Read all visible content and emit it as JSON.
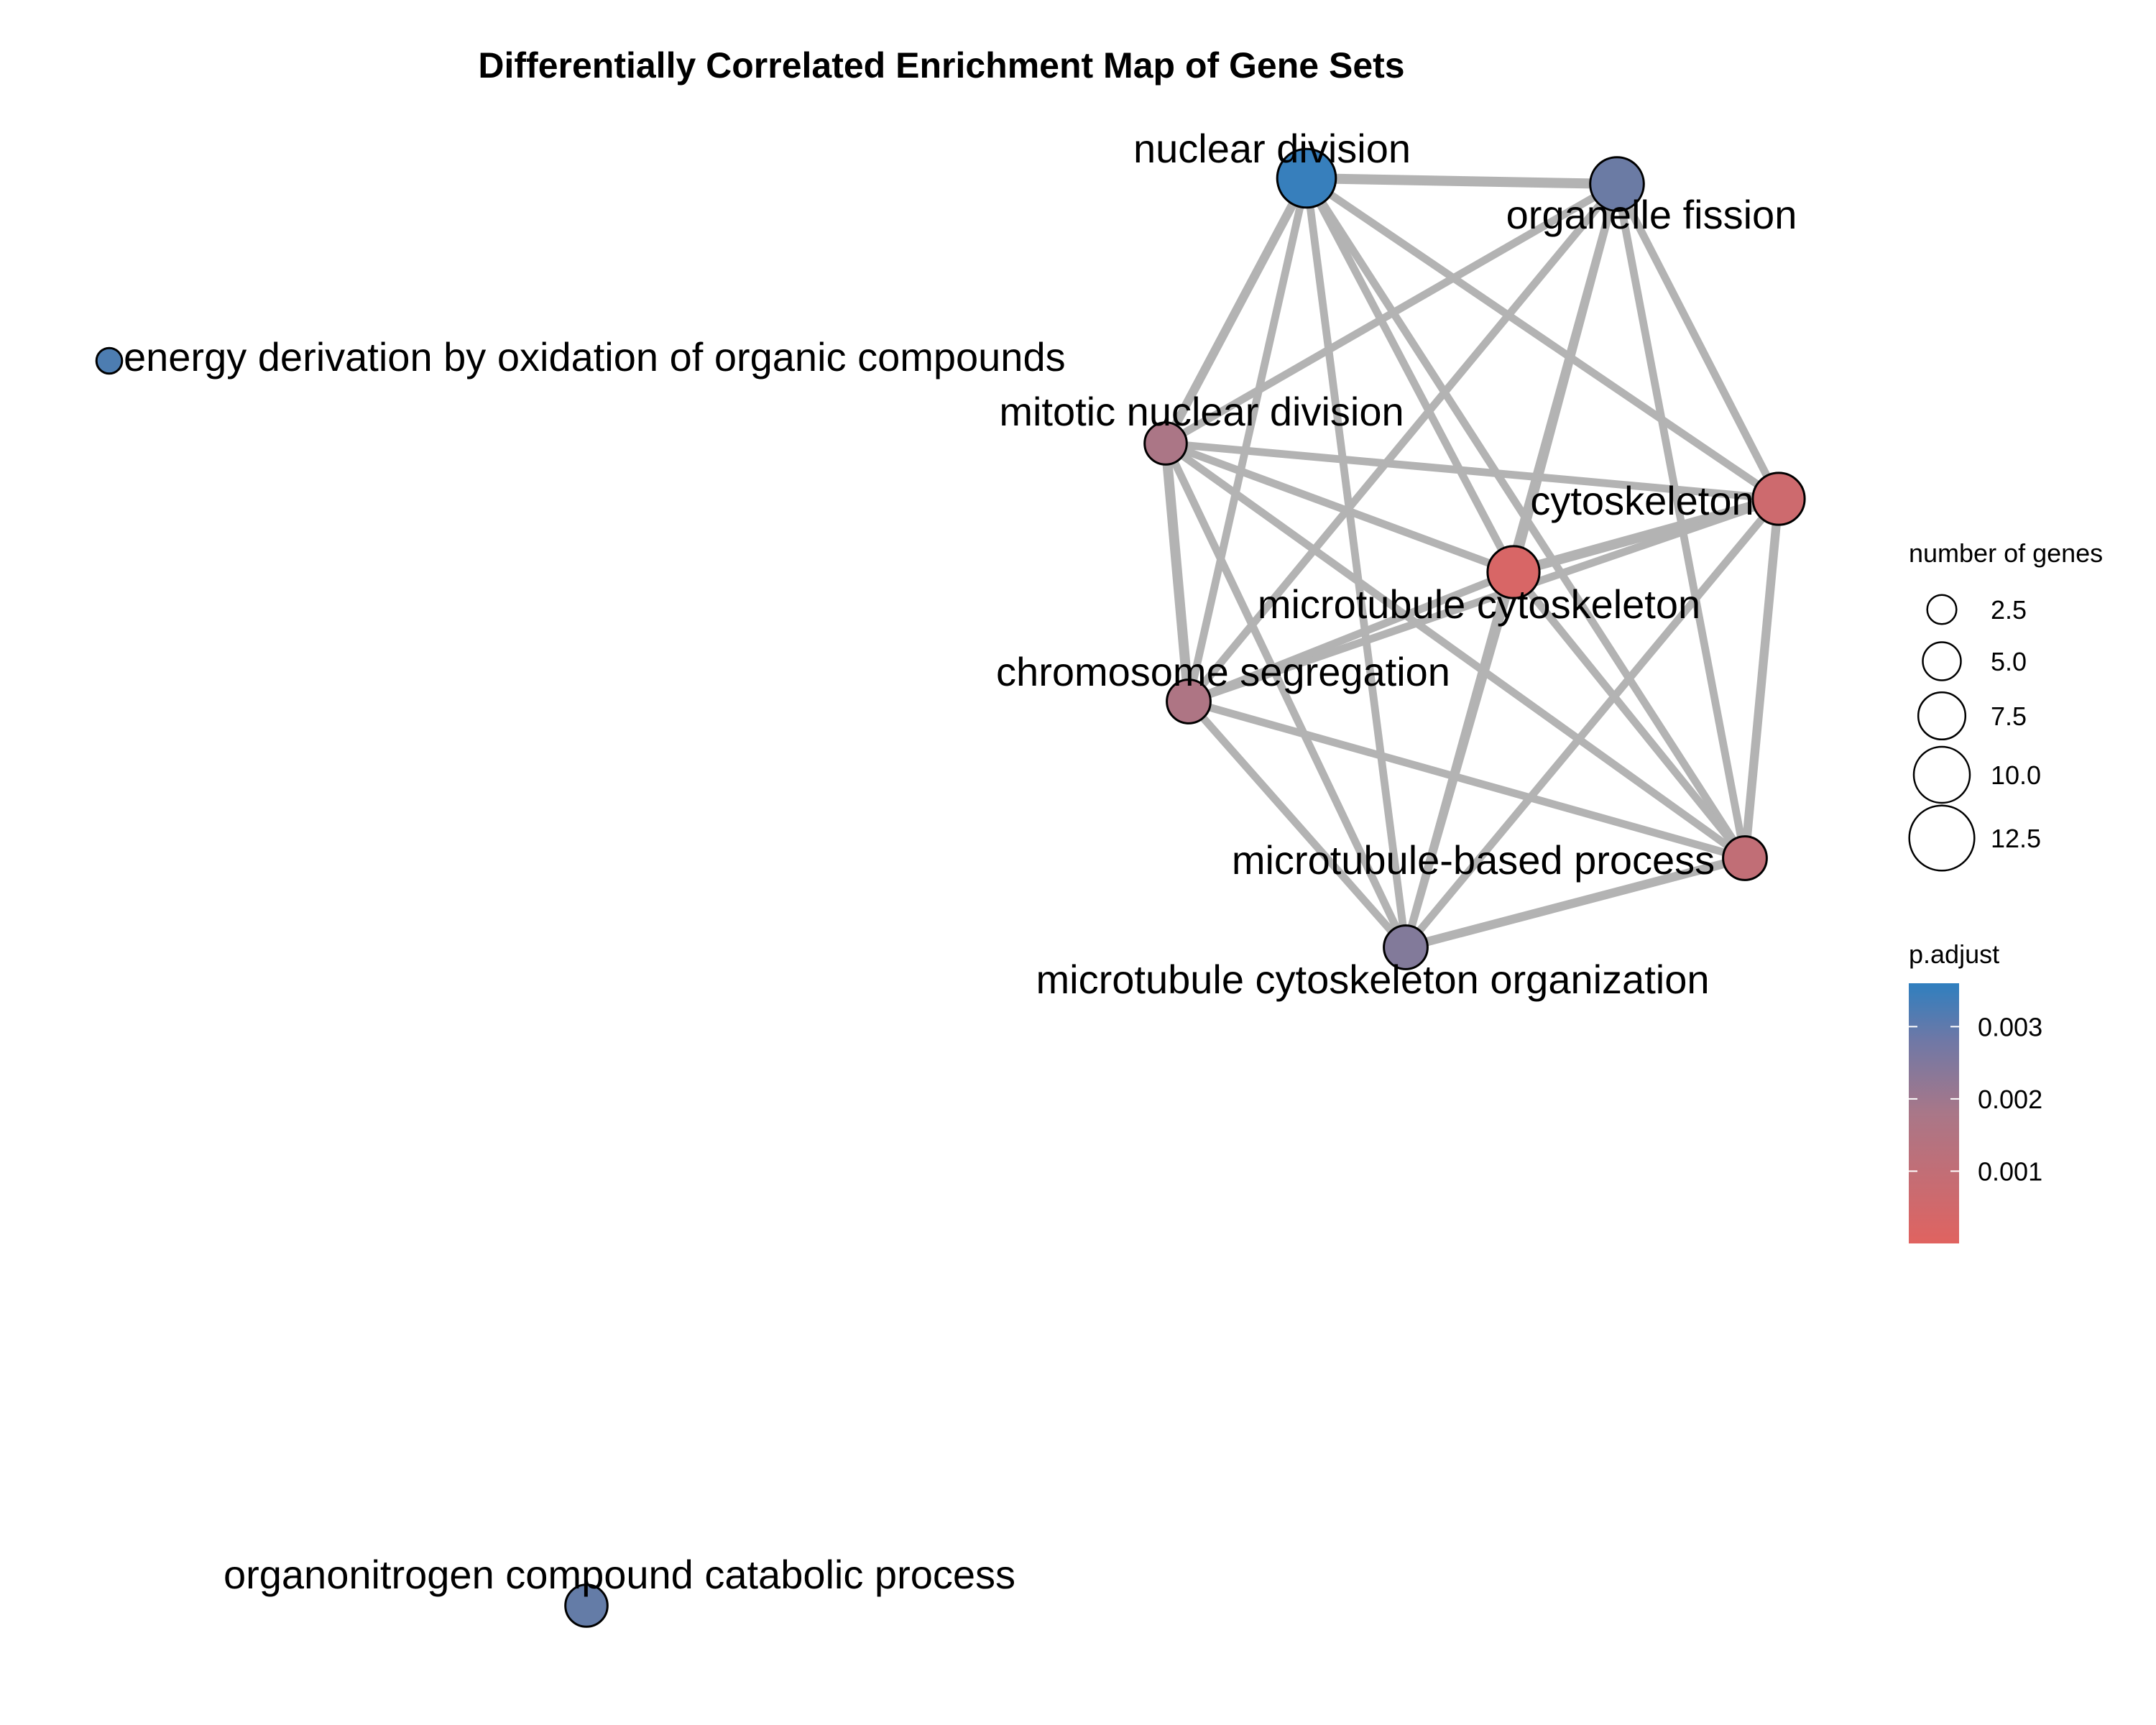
{
  "title": "Differentially Correlated Enrichment Map of Gene Sets",
  "colors": {
    "low_p": "#e06360",
    "mid_p": "#a97788",
    "high_p": "#2f7fbf",
    "edge": "#b3b3b3"
  },
  "nodes": [
    {
      "id": "nuclear-division",
      "label": "nuclear division",
      "p_adjust": 0.0035,
      "size": 12.5
    },
    {
      "id": "organelle-fission",
      "label": "organelle fission",
      "p_adjust": 0.0028,
      "size": 11.0
    },
    {
      "id": "energy-derivation",
      "label": "energy derivation by oxidation of organic compounds",
      "p_adjust": 0.0032,
      "size": 2.5
    },
    {
      "id": "mitotic-nuclear-division",
      "label": "mitotic nuclear division",
      "p_adjust": 0.0019,
      "size": 7.5
    },
    {
      "id": "cytoskeleton",
      "label": "cytoskeleton",
      "p_adjust": 0.0007,
      "size": 10.5
    },
    {
      "id": "microtubule-cytoskeleton",
      "label": "microtubule cytoskeleton",
      "p_adjust": 0.0003,
      "size": 10.5
    },
    {
      "id": "chromosome-segregation",
      "label": "chromosome segregation",
      "p_adjust": 0.0018,
      "size": 8.0
    },
    {
      "id": "microtubule-based-process",
      "label": "microtubule-based process",
      "p_adjust": 0.0011,
      "size": 8.0
    },
    {
      "id": "microtubule-cytoskeleton-organization",
      "label": "microtubule cytoskeleton organization",
      "p_adjust": 0.0025,
      "size": 8.0
    },
    {
      "id": "organonitrogen",
      "label": "organonitrogen compound catabolic process",
      "p_adjust": 0.0029,
      "size": 7.5
    }
  ],
  "edges": [
    {
      "source": "nuclear-division",
      "target": "organelle-fission",
      "weight": 1.0
    },
    {
      "source": "nuclear-division",
      "target": "mitotic-nuclear-division",
      "weight": 0.8
    },
    {
      "source": "nuclear-division",
      "target": "chromosome-segregation",
      "weight": 0.6
    },
    {
      "source": "nuclear-division",
      "target": "microtubule-cytoskeleton",
      "weight": 0.6
    },
    {
      "source": "nuclear-division",
      "target": "cytoskeleton",
      "weight": 0.6
    },
    {
      "source": "nuclear-division",
      "target": "microtubule-based-process",
      "weight": 0.6
    },
    {
      "source": "nuclear-division",
      "target": "microtubule-cytoskeleton-organization",
      "weight": 0.6
    },
    {
      "source": "organelle-fission",
      "target": "mitotic-nuclear-division",
      "weight": 0.6
    },
    {
      "source": "organelle-fission",
      "target": "chromosome-segregation",
      "weight": 0.6
    },
    {
      "source": "organelle-fission",
      "target": "microtubule-cytoskeleton",
      "weight": 0.6
    },
    {
      "source": "organelle-fission",
      "target": "cytoskeleton",
      "weight": 0.6
    },
    {
      "source": "organelle-fission",
      "target": "microtubule-based-process",
      "weight": 0.6
    },
    {
      "source": "organelle-fission",
      "target": "microtubule-cytoskeleton-organization",
      "weight": 0.6
    },
    {
      "source": "mitotic-nuclear-division",
      "target": "chromosome-segregation",
      "weight": 1.0
    },
    {
      "source": "mitotic-nuclear-division",
      "target": "microtubule-cytoskeleton",
      "weight": 0.6
    },
    {
      "source": "mitotic-nuclear-division",
      "target": "cytoskeleton",
      "weight": 0.6
    },
    {
      "source": "mitotic-nuclear-division",
      "target": "microtubule-based-process",
      "weight": 0.6
    },
    {
      "source": "mitotic-nuclear-division",
      "target": "microtubule-cytoskeleton-organization",
      "weight": 0.6
    },
    {
      "source": "cytoskeleton",
      "target": "microtubule-cytoskeleton",
      "weight": 1.0
    },
    {
      "source": "cytoskeleton",
      "target": "chromosome-segregation",
      "weight": 0.6
    },
    {
      "source": "cytoskeleton",
      "target": "microtubule-based-process",
      "weight": 0.8
    },
    {
      "source": "cytoskeleton",
      "target": "microtubule-cytoskeleton-organization",
      "weight": 0.6
    },
    {
      "source": "microtubule-cytoskeleton",
      "target": "chromosome-segregation",
      "weight": 0.6
    },
    {
      "source": "microtubule-cytoskeleton",
      "target": "microtubule-based-process",
      "weight": 0.6
    },
    {
      "source": "microtubule-cytoskeleton",
      "target": "microtubule-cytoskeleton-organization",
      "weight": 0.6
    },
    {
      "source": "chromosome-segregation",
      "target": "microtubule-based-process",
      "weight": 0.6
    },
    {
      "source": "chromosome-segregation",
      "target": "microtubule-cytoskeleton-organization",
      "weight": 0.6
    },
    {
      "source": "microtubule-based-process",
      "target": "microtubule-cytoskeleton-organization",
      "weight": 0.8
    }
  ],
  "legend_size": {
    "title": "number of genes",
    "entries": [
      {
        "value": 2.5,
        "label": "2.5"
      },
      {
        "value": 5.0,
        "label": "5.0"
      },
      {
        "value": 7.5,
        "label": "7.5"
      },
      {
        "value": 10.0,
        "label": "10.0"
      },
      {
        "value": 12.5,
        "label": "12.5"
      }
    ]
  },
  "legend_color": {
    "title": "p.adjust",
    "ticks": [
      {
        "value": 0.003,
        "label": "0.003"
      },
      {
        "value": 0.002,
        "label": "0.002"
      },
      {
        "value": 0.001,
        "label": "0.001"
      }
    ]
  }
}
